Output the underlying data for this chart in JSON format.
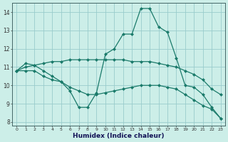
{
  "bg_color": "#cceee8",
  "grid_color": "#99cccc",
  "line_color": "#1a7a6a",
  "xlabel": "Humidex (Indice chaleur)",
  "x_values": [
    0,
    1,
    2,
    3,
    4,
    5,
    6,
    7,
    8,
    9,
    10,
    11,
    12,
    13,
    14,
    15,
    16,
    17,
    18,
    19,
    20,
    21,
    22,
    23
  ],
  "line1": [
    10.8,
    11.2,
    11.1,
    10.8,
    10.5,
    10.2,
    9.7,
    8.8,
    8.8,
    9.6,
    11.7,
    12.0,
    12.8,
    12.8,
    14.2,
    14.2,
    13.2,
    12.9,
    11.5,
    10.0,
    9.9,
    9.5,
    8.8,
    8.2
  ],
  "line2": [
    10.8,
    10.8,
    10.8,
    10.5,
    10.3,
    10.2,
    9.9,
    9.7,
    9.5,
    9.5,
    9.6,
    9.7,
    9.8,
    9.9,
    10.0,
    10.0,
    10.0,
    9.9,
    9.8,
    9.5,
    9.2,
    8.9,
    8.7,
    8.2
  ],
  "line3": [
    10.8,
    11.0,
    11.1,
    11.2,
    11.3,
    11.3,
    11.4,
    11.4,
    11.4,
    11.4,
    11.4,
    11.4,
    11.4,
    11.3,
    11.3,
    11.3,
    11.2,
    11.1,
    11.0,
    10.8,
    10.6,
    10.3,
    9.8,
    9.5
  ],
  "ylim_min": 7.8,
  "ylim_max": 14.5,
  "xlim_min": -0.5,
  "xlim_max": 23.5,
  "yticks": [
    8,
    9,
    10,
    11,
    12,
    13,
    14
  ],
  "ytick_labels": [
    "8",
    "9",
    "10",
    "11",
    "12",
    "13",
    "14"
  ],
  "xtick_labels": [
    "0",
    "1",
    "2",
    "3",
    "4",
    "5",
    "6",
    "7",
    "8",
    "9",
    "10",
    "11",
    "12",
    "13",
    "14",
    "15",
    "16",
    "17",
    "18",
    "19",
    "20",
    "21",
    "22",
    "23"
  ]
}
